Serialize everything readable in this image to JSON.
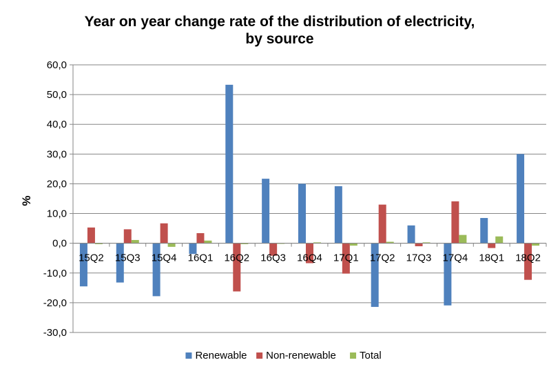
{
  "chart_data": {
    "type": "bar",
    "title_line1": "Year on year change rate of the distribution of electricity,",
    "title_line2": "by source",
    "ylabel": "%",
    "xlabel": "",
    "ylim": [
      -30,
      60
    ],
    "yticks": [
      60,
      50,
      40,
      30,
      20,
      10,
      0,
      -10,
      -20,
      -30
    ],
    "ytick_labels": [
      "60,0",
      "50,0",
      "40,0",
      "30,0",
      "20,0",
      "10,0",
      "0,0",
      "-10,0",
      "-20,0",
      "-30,0"
    ],
    "grid": true,
    "legend_position": "bottom",
    "categories": [
      "15Q2",
      "15Q3",
      "15Q4",
      "16Q1",
      "16Q2",
      "16Q3",
      "16Q4",
      "17Q1",
      "17Q2",
      "17Q3",
      "17Q4",
      "18Q1",
      "18Q2"
    ],
    "series": [
      {
        "name": "Renewable",
        "color": "#4f81bd",
        "values": [
          -14.5,
          -13.2,
          -17.8,
          -3.6,
          53.3,
          21.7,
          20.0,
          19.2,
          -21.4,
          6.0,
          -20.9,
          8.5,
          30.0
        ]
      },
      {
        "name": "Non-renewable",
        "color": "#c0504d",
        "values": [
          5.3,
          4.7,
          6.7,
          3.4,
          -16.2,
          -4.2,
          -6.7,
          -10.2,
          13.0,
          -1.0,
          14.1,
          -1.6,
          -12.3
        ]
      },
      {
        "name": "Total",
        "color": "#9bbb59",
        "values": [
          -0.3,
          1.1,
          -1.2,
          0.9,
          -0.3,
          -0.2,
          0.3,
          -0.8,
          0.5,
          0.3,
          2.8,
          2.3,
          -0.8
        ]
      }
    ]
  }
}
